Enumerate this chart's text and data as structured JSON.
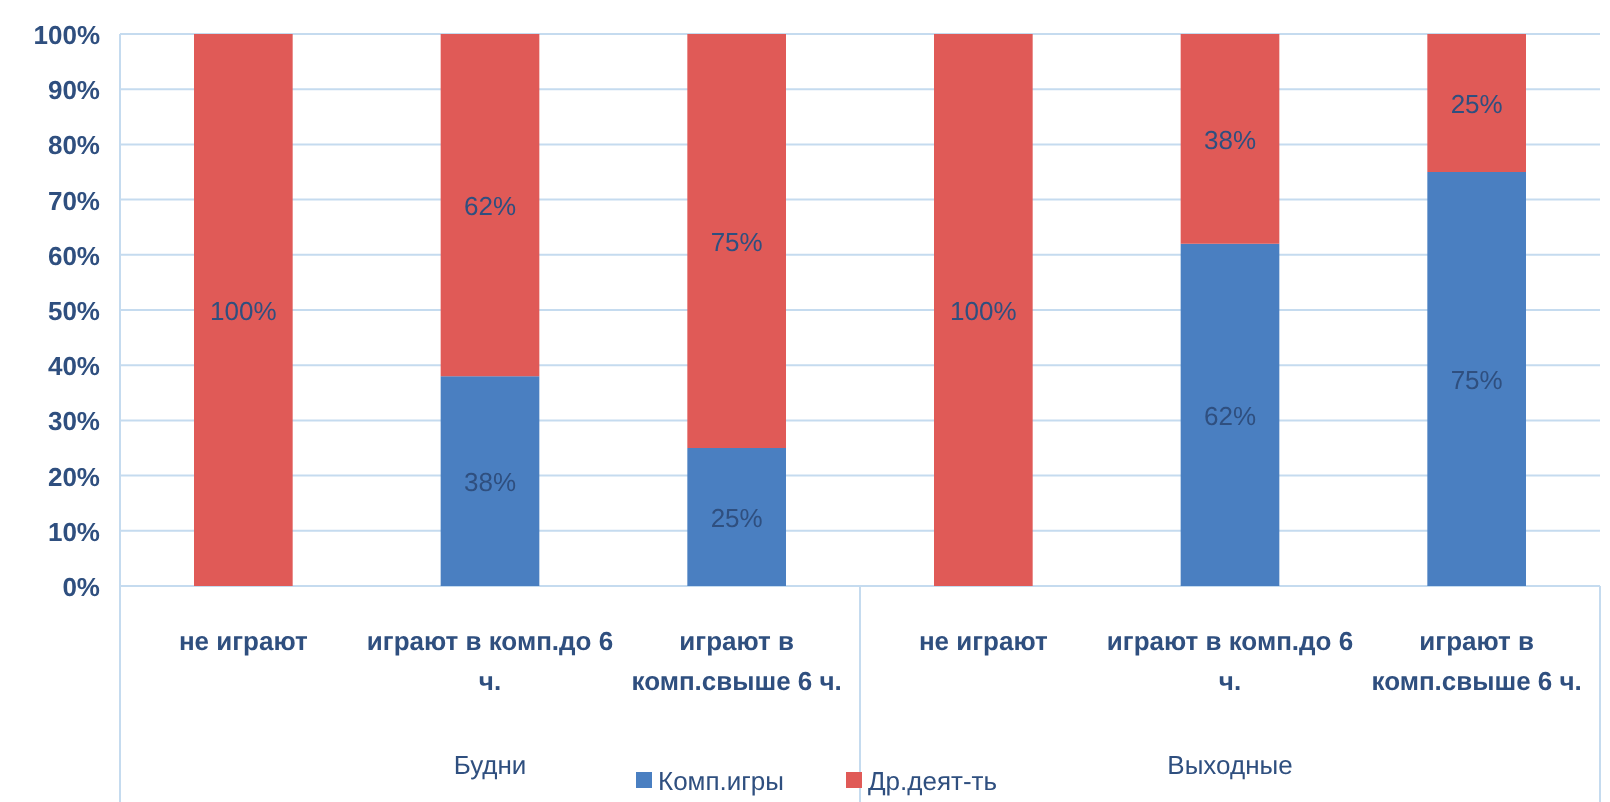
{
  "chart_data": {
    "type": "bar",
    "stacked": true,
    "categories": [
      "не играют",
      "играют в комп.до 6 ч.",
      "играют в комп.свыше 6 ч.",
      "не играют",
      "играют в комп.до 6 ч.",
      "играют в комп.свыше 6 ч."
    ],
    "annotations": [
      "Будни",
      "Выходные"
    ],
    "series": [
      {
        "name": "Комп.игры",
        "color": "#4a7fc1",
        "values": [
          0,
          38,
          25,
          0,
          62,
          75
        ],
        "value_labels": [
          null,
          "38%",
          "25%",
          null,
          "62%",
          "75%"
        ]
      },
      {
        "name": "Др.деят-ть",
        "color": "#e05a57",
        "values": [
          100,
          62,
          75,
          100,
          38,
          25
        ],
        "value_labels": [
          "100%",
          "62%",
          "75%",
          "100%",
          "38%",
          "25%"
        ]
      }
    ],
    "ylim": [
      0,
      100
    ],
    "yticks": [
      {
        "value": 0,
        "label": "0%"
      },
      {
        "value": 10,
        "label": "10%"
      },
      {
        "value": 20,
        "label": "20%"
      },
      {
        "value": 30,
        "label": "30%"
      },
      {
        "value": 40,
        "label": "40%"
      },
      {
        "value": 50,
        "label": "50%"
      },
      {
        "value": 60,
        "label": "60%"
      },
      {
        "value": 70,
        "label": "70%"
      },
      {
        "value": 80,
        "label": "80%"
      },
      {
        "value": 90,
        "label": "90%"
      },
      {
        "value": 100,
        "label": "100%"
      }
    ],
    "grid": "y",
    "legend": "bottom"
  }
}
